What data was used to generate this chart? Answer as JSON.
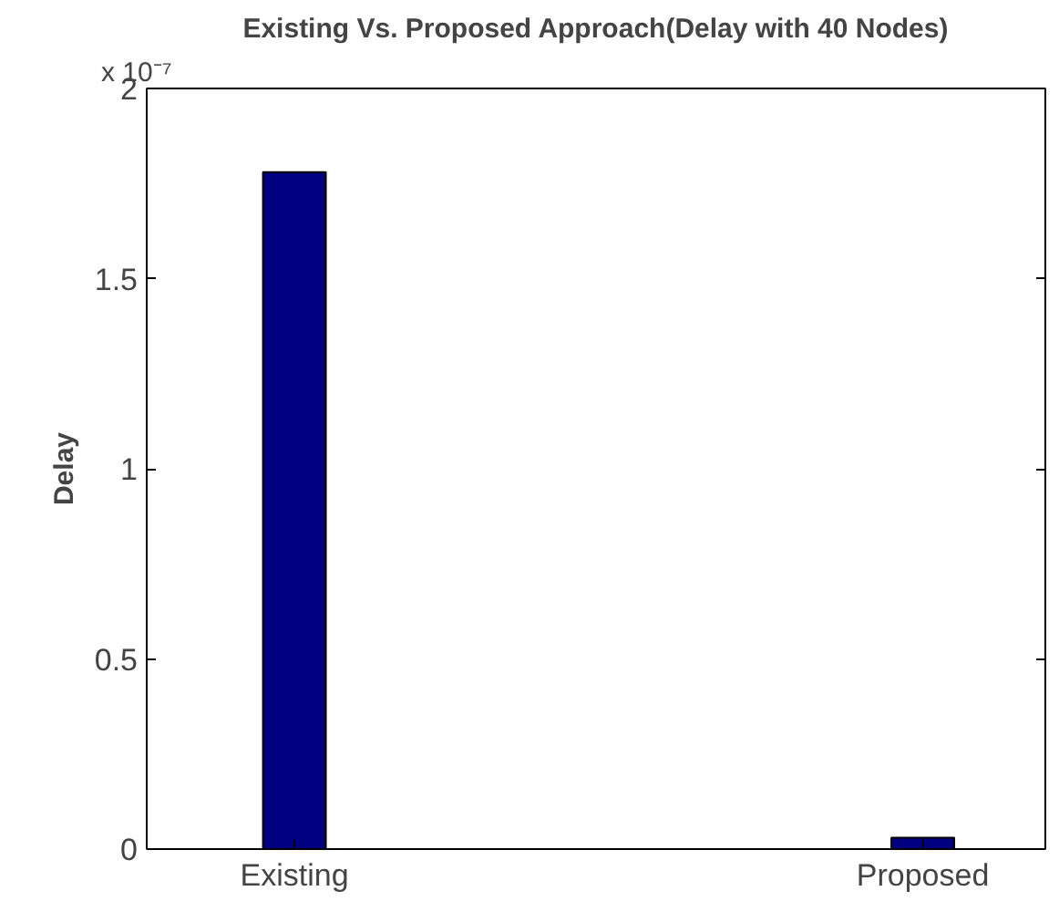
{
  "chart_data": {
    "type": "bar",
    "title": "Existing Vs. Proposed Approach(Delay with 40 Nodes)",
    "ylabel": "Delay",
    "categories": [
      "Existing",
      "Proposed"
    ],
    "values": [
      1.78,
      0.03
    ],
    "color": "#000080",
    "ylim": [
      0,
      2
    ],
    "yticks": [
      0,
      0.5,
      1,
      1.5,
      2
    ],
    "grid": false,
    "annotations": [
      "x 10⁻⁷"
    ]
  }
}
